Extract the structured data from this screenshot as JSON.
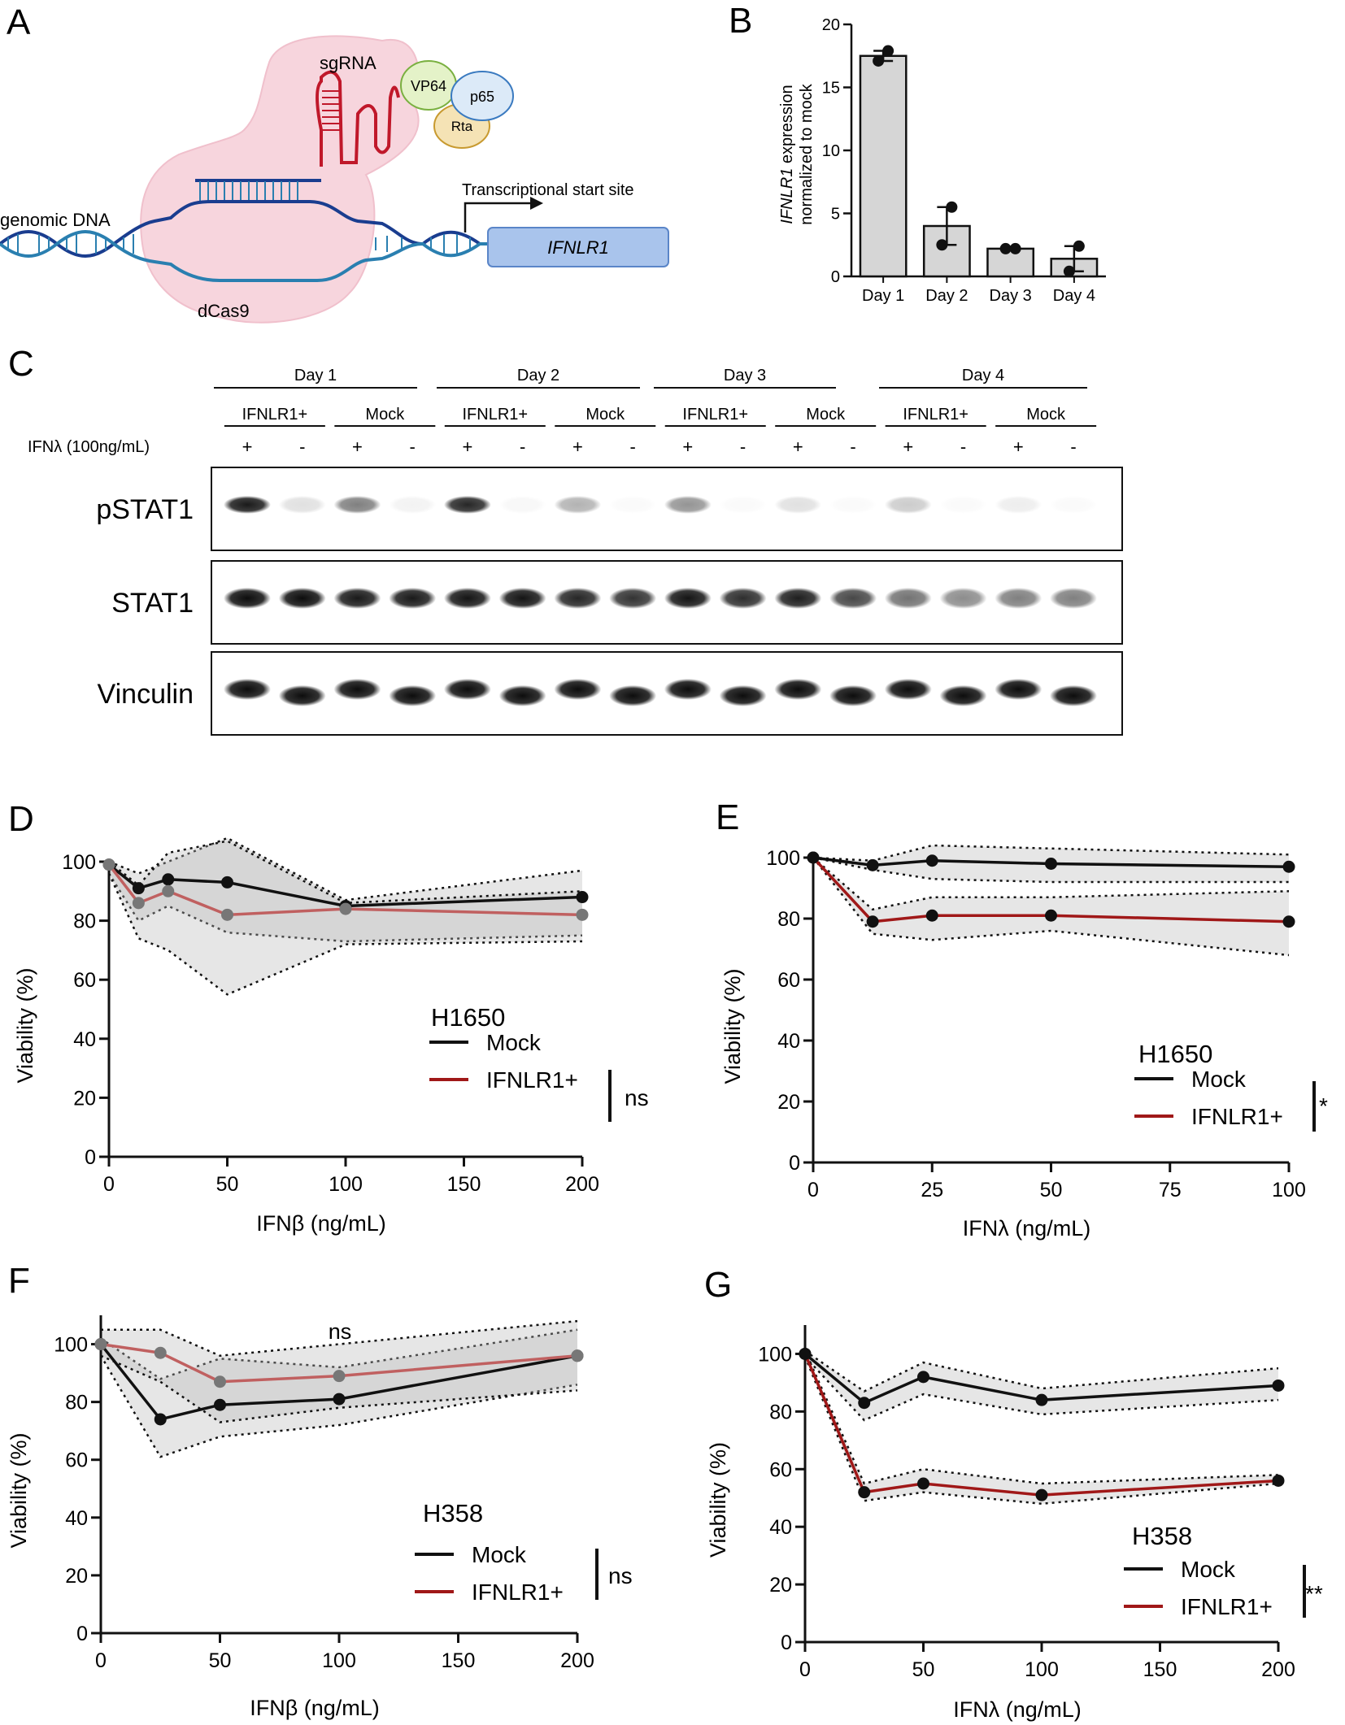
{
  "panels": {
    "A": {
      "label": "A",
      "sgrna": "sgRNA",
      "vp64": "VP64",
      "p65": "p65",
      "rta": "Rta",
      "tss": "Transcriptional start site",
      "genomic": "genomic DNA",
      "dcas9": "dCas9",
      "gene": "IFNLR1"
    },
    "B": {
      "label": "B"
    },
    "C": {
      "label": "C",
      "treatment": "IFNλ (100ng/mL)",
      "days": [
        "Day 1",
        "Day 2",
        "Day 3",
        "Day 4"
      ],
      "groups": [
        "IFNLR1+",
        "Mock"
      ],
      "signs": [
        "+",
        "-"
      ],
      "blots": [
        "pSTAT1",
        "STAT1",
        "Vinculin"
      ],
      "intensity": {
        "pSTAT1": [
          0.9,
          0.12,
          0.5,
          0.05,
          0.85,
          0.03,
          0.3,
          0.02,
          0.42,
          0.02,
          0.12,
          0.02,
          0.2,
          0.02,
          0.07,
          0.02
        ],
        "STAT1": [
          0.95,
          0.95,
          0.9,
          0.9,
          0.92,
          0.92,
          0.85,
          0.8,
          0.92,
          0.82,
          0.88,
          0.72,
          0.55,
          0.45,
          0.5,
          0.5
        ],
        "Vinculin": [
          0.95,
          0.95,
          0.95,
          0.95,
          0.95,
          0.95,
          0.95,
          0.95,
          0.95,
          0.95,
          0.95,
          0.95,
          0.95,
          0.95,
          0.95,
          0.95
        ]
      }
    },
    "D": {
      "label": "D"
    },
    "E": {
      "label": "E"
    },
    "F": {
      "label": "F"
    },
    "G": {
      "label": "G"
    }
  },
  "chart_data": [
    {
      "id": "B",
      "type": "bar",
      "categories": [
        "Day 1",
        "Day 2",
        "Day 3",
        "Day 4"
      ],
      "values": [
        17.5,
        4.0,
        2.2,
        1.4
      ],
      "error": [
        0.4,
        1.5,
        0.1,
        1.0
      ],
      "points": [
        [
          17.1,
          17.9
        ],
        [
          2.5,
          5.5
        ],
        [
          2.2,
          2.2
        ],
        [
          0.4,
          2.4
        ]
      ],
      "ylabel_italic": "IFNLR1",
      "ylabel_rest": " expression",
      "ylabel_line2": "normalized to mock",
      "ylim": [
        0,
        20
      ],
      "yticks": [
        "0",
        "5",
        "10",
        "15",
        "20"
      ],
      "colors": {
        "bar": "#d6d6d6"
      }
    },
    {
      "id": "D",
      "type": "line",
      "cell_line": "H1650",
      "xlabel": "IFNβ (ng/mL)",
      "ylabel": "Viability (%)",
      "xlim": [
        0,
        200
      ],
      "ylim": [
        0,
        100
      ],
      "xticks": [
        "0",
        "50",
        "100",
        "150",
        "200"
      ],
      "yticks": [
        "0",
        "20",
        "40",
        "60",
        "80",
        "100"
      ],
      "x": [
        0,
        12.5,
        25,
        50,
        100,
        200
      ],
      "series": [
        {
          "name": "Mock",
          "values": [
            99,
            91,
            94,
            93,
            85,
            88
          ],
          "color": "#111111",
          "upper": [
            100,
            96,
            100,
            108,
            87,
            97
          ],
          "lower": [
            96,
            80,
            85,
            76,
            73,
            75
          ]
        },
        {
          "name": "IFNLR1+",
          "values": [
            99,
            86,
            90,
            82,
            84,
            82
          ],
          "color": "#c06060",
          "upper": [
            100,
            92,
            103,
            107,
            86,
            90
          ],
          "lower": [
            96,
            74,
            70,
            55,
            72,
            73
          ]
        }
      ],
      "sig": "ns"
    },
    {
      "id": "E",
      "type": "line",
      "cell_line": "H1650",
      "xlabel": "IFNλ (ng/mL)",
      "ylabel": "Viability (%)",
      "xlim": [
        0,
        100
      ],
      "ylim": [
        0,
        100
      ],
      "xticks": [
        "0",
        "25",
        "50",
        "75",
        "100"
      ],
      "yticks": [
        "0",
        "20",
        "40",
        "60",
        "80",
        "100"
      ],
      "x": [
        0,
        12.5,
        25,
        50,
        100
      ],
      "series": [
        {
          "name": "Mock",
          "values": [
            100,
            97.5,
            99,
            98,
            97
          ],
          "color": "#111111",
          "upper": [
            100,
            99,
            104,
            103,
            101
          ],
          "lower": [
            100,
            96,
            93,
            92,
            92
          ]
        },
        {
          "name": "IFNLR1+",
          "values": [
            100,
            79,
            81,
            81,
            79
          ],
          "color": "#a01818",
          "upper": [
            100,
            83,
            87,
            87,
            89
          ],
          "lower": [
            100,
            75,
            73,
            76,
            68
          ]
        }
      ],
      "sig": "*"
    },
    {
      "id": "F",
      "type": "line",
      "cell_line": "H358",
      "xlabel": "IFNβ (ng/mL)",
      "ylabel": "Viability (%)",
      "xlim": [
        0,
        200
      ],
      "ylim": [
        0,
        110
      ],
      "xticks": [
        "0",
        "50",
        "100",
        "150",
        "200"
      ],
      "yticks": [
        "0",
        "20",
        "40",
        "60",
        "80",
        "100"
      ],
      "x": [
        0,
        25,
        50,
        100,
        200
      ],
      "series": [
        {
          "name": "Mock",
          "values": [
            100,
            74,
            79,
            81,
            96
          ],
          "color": "#111111",
          "upper": [
            102,
            88,
            95,
            92,
            105
          ],
          "lower": [
            96,
            61,
            68,
            72,
            86
          ]
        },
        {
          "name": "IFNLR1+",
          "values": [
            100,
            97,
            87,
            89,
            96
          ],
          "color": "#c06060",
          "upper": [
            105,
            105,
            96,
            100,
            108
          ],
          "lower": [
            96,
            87,
            73,
            78,
            84
          ]
        }
      ],
      "sig": "ns"
    },
    {
      "id": "G",
      "type": "line",
      "cell_line": "H358",
      "xlabel": "IFNλ (ng/mL)",
      "ylabel": "Viability (%)",
      "xlim": [
        0,
        200
      ],
      "ylim": [
        0,
        110
      ],
      "xticks": [
        "0",
        "50",
        "100",
        "150",
        "200"
      ],
      "yticks": [
        "0",
        "20",
        "40",
        "60",
        "80",
        "100"
      ],
      "x": [
        0,
        25,
        50,
        100,
        200
      ],
      "series": [
        {
          "name": "Mock",
          "values": [
            100,
            83,
            92,
            84,
            89
          ],
          "color": "#111111",
          "upper": [
            101,
            87,
            97,
            88,
            95
          ],
          "lower": [
            99,
            77,
            86,
            79,
            84
          ]
        },
        {
          "name": "IFNLR1+",
          "values": [
            100,
            52,
            55,
            51,
            56
          ],
          "color": "#a01818",
          "upper": [
            101,
            55,
            60,
            55,
            58
          ],
          "lower": [
            99,
            49,
            52,
            48,
            55
          ]
        }
      ],
      "sig": "**"
    }
  ]
}
